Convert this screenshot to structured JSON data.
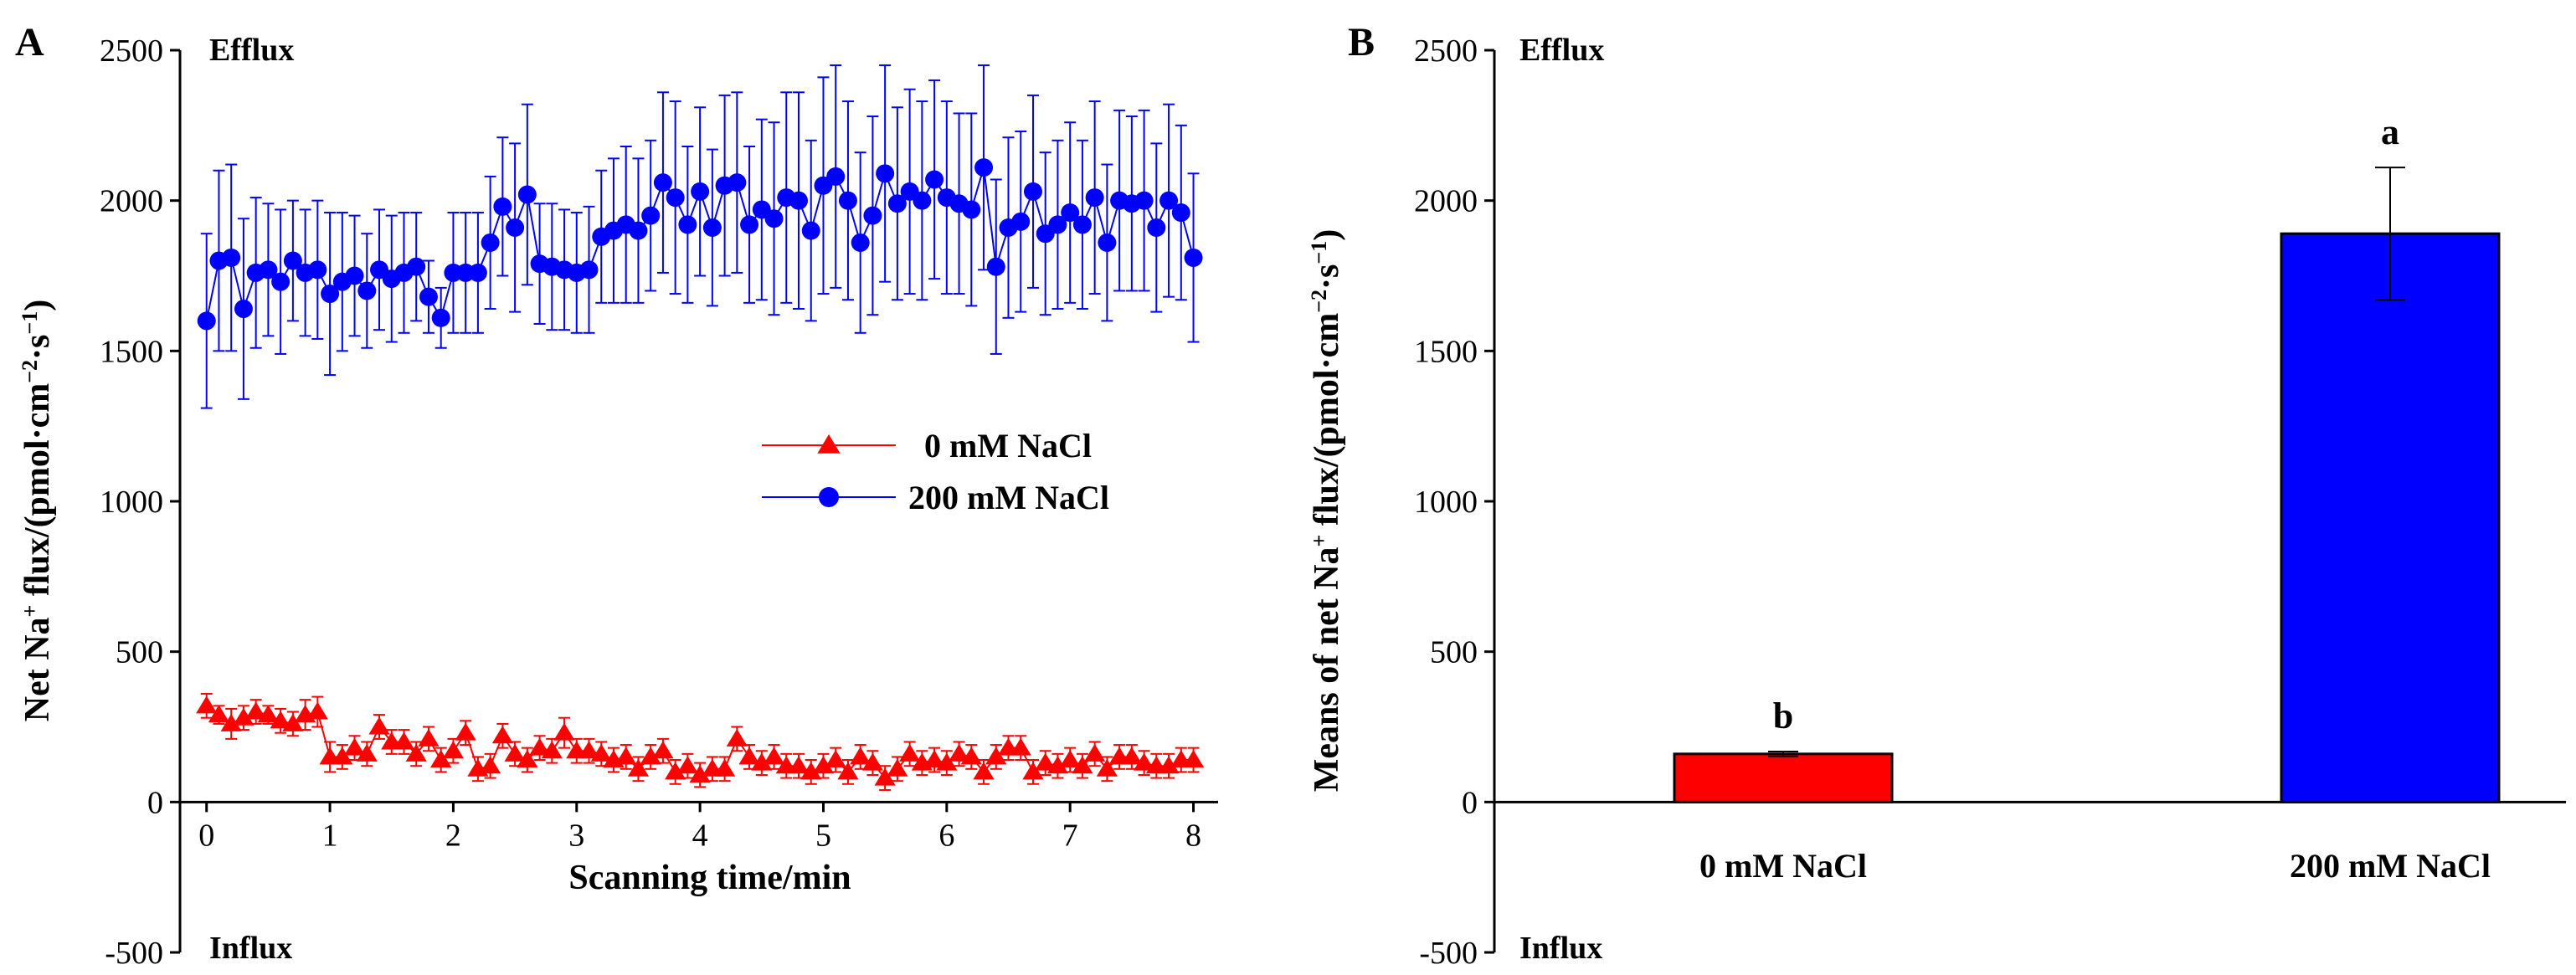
{
  "figure": {
    "panel_a": {
      "letter": "A",
      "ylabel_parts": [
        "Net Na",
        "+",
        " flux/(pmol·cm",
        "−2",
        "·s",
        "−1",
        ")"
      ],
      "corner_top": "Efflux",
      "corner_bottom": "Influx"
    },
    "panel_b": {
      "letter": "B",
      "ylabel_parts": [
        "Means of net Na",
        "+",
        " flux/(pmol·cm",
        "−2",
        "·s",
        "−1",
        ")"
      ],
      "corner_top": "Efflux",
      "corner_bottom": "Influx"
    }
  },
  "chart_data": [
    {
      "type": "line",
      "panel": "A",
      "title": "",
      "xlabel": "Scanning time/min",
      "ylabel": "Net Na+ flux/(pmol·cm−2·s−1)",
      "xlim": [
        -0.1,
        8.2
      ],
      "ylim": [
        -500,
        2500
      ],
      "xticks": [
        0,
        1,
        2,
        3,
        4,
        5,
        6,
        7,
        8
      ],
      "yticks": [
        -500,
        0,
        500,
        1000,
        1500,
        2000,
        2500
      ],
      "legend_position": "center-right",
      "series": [
        {
          "name": "0 mM NaCl",
          "legend_label": "0 mM NaCl",
          "marker": "triangle",
          "color": "#ff0000",
          "values": [
            320,
            290,
            260,
            280,
            300,
            290,
            270,
            260,
            290,
            300,
            150,
            150,
            180,
            160,
            250,
            200,
            200,
            160,
            210,
            140,
            170,
            230,
            110,
            120,
            220,
            160,
            140,
            180,
            170,
            230,
            170,
            170,
            160,
            140,
            150,
            110,
            150,
            170,
            100,
            120,
            90,
            110,
            110,
            210,
            150,
            130,
            150,
            120,
            120,
            100,
            120,
            140,
            100,
            150,
            130,
            80,
            110,
            160,
            130,
            140,
            130,
            160,
            150,
            100,
            150,
            180,
            180,
            100,
            130,
            120,
            140,
            120,
            160,
            110,
            150,
            150,
            130,
            120,
            120,
            140,
            140
          ],
          "err": [
            40,
            30,
            50,
            40,
            40,
            30,
            40,
            40,
            50,
            50,
            50,
            40,
            40,
            40,
            40,
            40,
            40,
            40,
            40,
            40,
            40,
            40,
            40,
            40,
            40,
            40,
            40,
            40,
            40,
            50,
            40,
            40,
            40,
            40,
            40,
            40,
            40,
            40,
            40,
            40,
            40,
            40,
            40,
            40,
            40,
            40,
            40,
            40,
            40,
            40,
            40,
            40,
            40,
            40,
            40,
            40,
            40,
            40,
            40,
            40,
            40,
            40,
            40,
            40,
            40,
            40,
            40,
            40,
            40,
            40,
            40,
            40,
            40,
            40,
            40,
            40,
            40,
            40,
            40,
            40,
            40
          ]
        },
        {
          "name": "200 mM NaCl",
          "legend_label": "200 mM NaCl",
          "marker": "circle",
          "color": "#0000ff",
          "values": [
            1600,
            1800,
            1810,
            1640,
            1760,
            1770,
            1730,
            1800,
            1760,
            1770,
            1690,
            1730,
            1750,
            1700,
            1770,
            1740,
            1760,
            1780,
            1680,
            1610,
            1760,
            1760,
            1760,
            1860,
            1980,
            1910,
            2020,
            1790,
            1780,
            1770,
            1760,
            1770,
            1880,
            1900,
            1920,
            1900,
            1950,
            2060,
            2010,
            1920,
            2030,
            1910,
            2050,
            2060,
            1920,
            1970,
            1940,
            2010,
            2000,
            1900,
            2050,
            2080,
            2000,
            1860,
            1950,
            2090,
            1990,
            2030,
            2000,
            2070,
            2010,
            1990,
            1970,
            2110,
            1780,
            1910,
            1930,
            2030,
            1890,
            1920,
            1960,
            1920,
            2010,
            1860,
            2000,
            1990,
            2000,
            1910,
            2000,
            1960,
            1810
          ],
          "err": [
            290,
            300,
            310,
            300,
            250,
            220,
            240,
            200,
            210,
            230,
            270,
            230,
            200,
            190,
            200,
            210,
            200,
            180,
            120,
            100,
            200,
            200,
            200,
            220,
            230,
            280,
            300,
            200,
            210,
            200,
            200,
            210,
            220,
            240,
            260,
            240,
            250,
            300,
            320,
            260,
            280,
            260,
            300,
            300,
            260,
            300,
            320,
            350,
            360,
            300,
            360,
            370,
            330,
            300,
            330,
            360,
            320,
            340,
            330,
            330,
            320,
            300,
            320,
            340,
            290,
            300,
            300,
            320,
            270,
            280,
            300,
            280,
            320,
            260,
            300,
            290,
            300,
            280,
            320,
            290,
            280
          ]
        }
      ]
    },
    {
      "type": "bar",
      "panel": "B",
      "title": "",
      "xlabel": "",
      "ylabel": "Means of net Na+ flux/(pmol·cm−2·s−1)",
      "ylim": [
        -500,
        2500
      ],
      "yticks": [
        -500,
        0,
        500,
        1000,
        1500,
        2000,
        2500
      ],
      "categories": [
        "0 mM NaCl",
        "200 mM NaCl"
      ],
      "values": [
        160,
        1890
      ],
      "err": [
        8,
        220
      ],
      "colors": [
        "#ff0000",
        "#0000ff"
      ],
      "labels": [
        "b",
        "a"
      ]
    }
  ]
}
